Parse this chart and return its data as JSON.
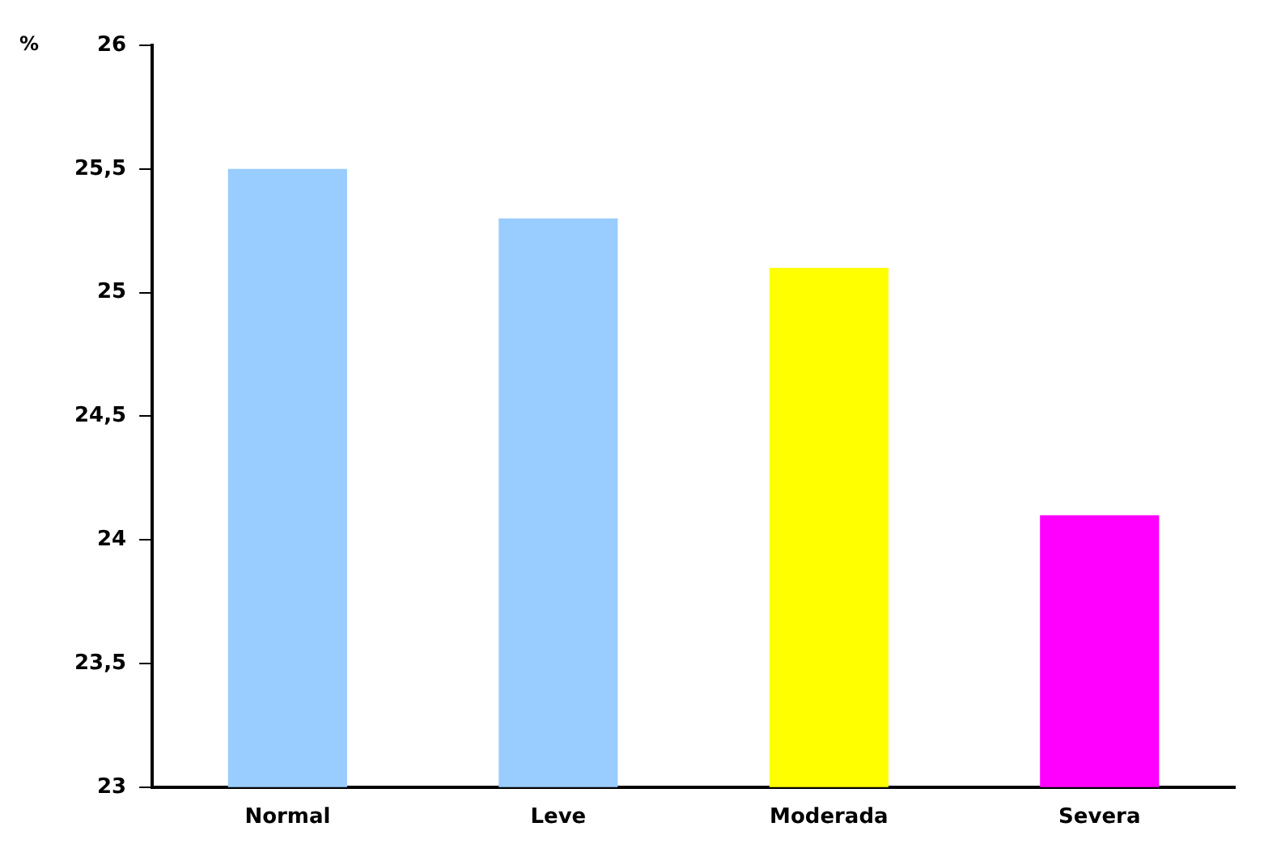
{
  "chart_data": {
    "type": "bar",
    "ylabel": "%",
    "categories": [
      "Normal",
      "Leve",
      "Moderada",
      "Severa"
    ],
    "values": [
      25.5,
      25.3,
      25.1,
      24.1
    ],
    "colors": [
      "#99ccff",
      "#99ccff",
      "#ffff00",
      "#ff00ff"
    ],
    "ylim": [
      23,
      26
    ],
    "yticks": [
      23,
      {
        "value": 23.5,
        "label": "23,5"
      },
      24,
      {
        "value": 24.5,
        "label": "24,5"
      },
      25,
      {
        "value": 25.5,
        "label": "25,5"
      },
      26
    ],
    "grid": false,
    "legend": false
  }
}
